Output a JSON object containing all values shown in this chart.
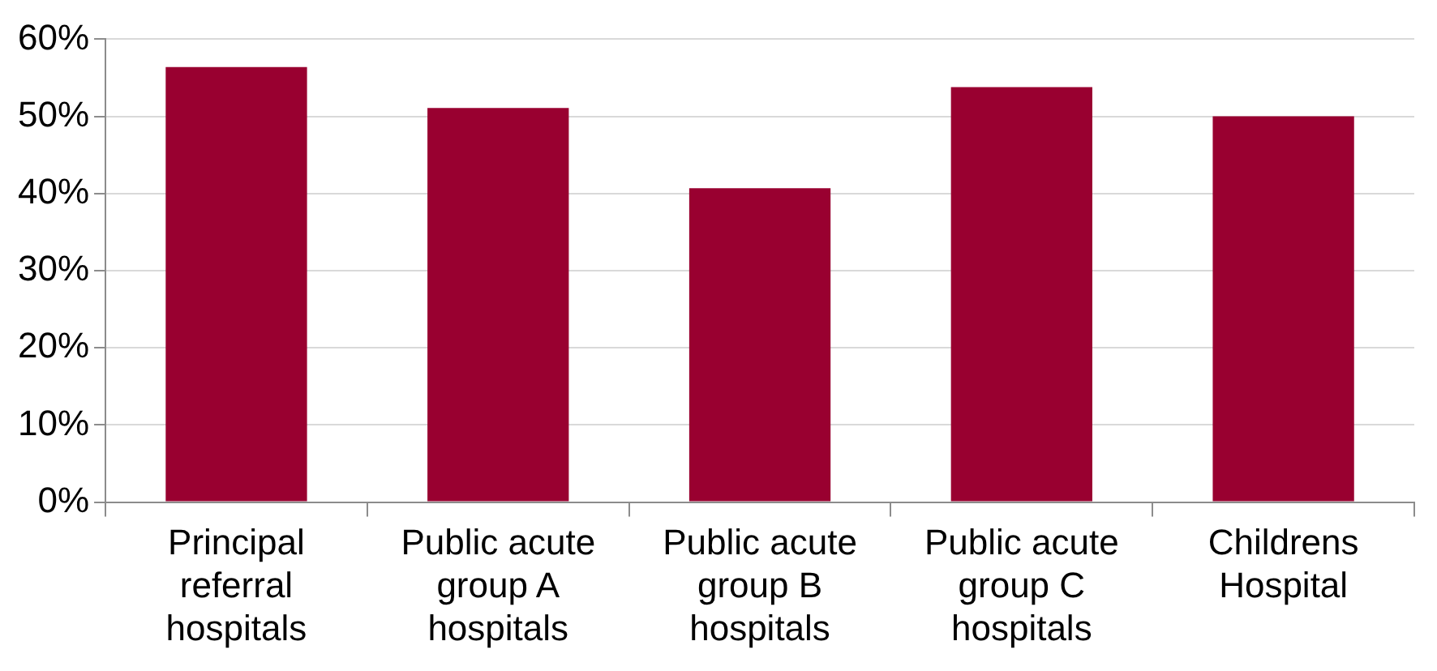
{
  "chart_data": {
    "type": "bar",
    "categories": [
      "Principal referral hospitals",
      "Public acute group A hospitals",
      "Public acute group B hospitals",
      "Public acute group C hospitals",
      "Childrens Hospital"
    ],
    "values": [
      56.4,
      51.1,
      40.7,
      53.8,
      50.0
    ],
    "color": "#990030",
    "ylim": [
      0,
      60
    ],
    "yticks": [
      {
        "value": 0,
        "label": "0%"
      },
      {
        "value": 10,
        "label": "10%"
      },
      {
        "value": 20,
        "label": "20%"
      },
      {
        "value": 30,
        "label": "30%"
      },
      {
        "value": 40,
        "label": "40%"
      },
      {
        "value": 50,
        "label": "50%"
      },
      {
        "value": 60,
        "label": "60%"
      }
    ],
    "grid": "y",
    "legend": false
  }
}
